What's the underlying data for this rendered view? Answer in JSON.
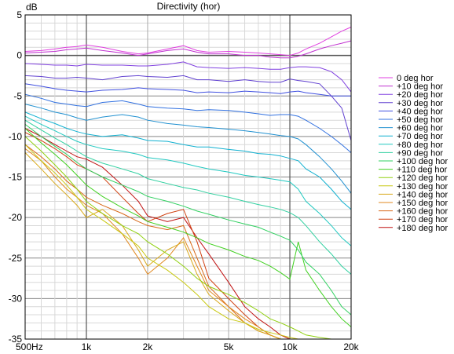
{
  "chart_data": {
    "type": "line",
    "title": "Directivity (hor)",
    "ylabel": "dB",
    "xlabel": "",
    "xscale": "log",
    "xlim": [
      500,
      20000
    ],
    "ylim": [
      -35,
      5
    ],
    "grid": true,
    "legend_placement": "right",
    "x_ticks": [
      {
        "value": 500,
        "label": "500Hz"
      },
      {
        "value": 1000,
        "label": "1k"
      },
      {
        "value": 2000,
        "label": "2k"
      },
      {
        "value": 5000,
        "label": "5k"
      },
      {
        "value": 10000,
        "label": "10k"
      },
      {
        "value": 20000,
        "label": "20k"
      }
    ],
    "y_ticks": [
      {
        "value": 5,
        "label": "5"
      },
      {
        "value": 0,
        "label": "0"
      },
      {
        "value": -5,
        "label": "-5"
      },
      {
        "value": -10,
        "label": "-10"
      },
      {
        "value": -15,
        "label": "-15"
      },
      {
        "value": -20,
        "label": "-20"
      },
      {
        "value": -25,
        "label": "-25"
      },
      {
        "value": -30,
        "label": "-30"
      },
      {
        "value": -35,
        "label": "-35"
      }
    ],
    "x": [
      500,
      600,
      700,
      800,
      900,
      1000,
      1200,
      1500,
      1800,
      2000,
      2500,
      3000,
      3500,
      4000,
      5000,
      6000,
      7000,
      8000,
      9000,
      10000,
      11000,
      12000,
      14000,
      16000,
      18000,
      20000
    ],
    "series": [
      {
        "name": "0 deg hor",
        "color": "#e040e0",
        "values": [
          0.5,
          0.6,
          0.8,
          1.0,
          1.1,
          1.3,
          1.0,
          0.5,
          0.2,
          0.3,
          0.8,
          1.2,
          0.6,
          0.4,
          0.5,
          0.4,
          0.3,
          0.2,
          0.1,
          0.0,
          0.3,
          0.8,
          1.5,
          2.3,
          3.0,
          3.5
        ]
      },
      {
        "name": "+10 deg hor",
        "color": "#c030d0",
        "values": [
          0.3,
          0.4,
          0.5,
          0.7,
          0.8,
          0.9,
          0.6,
          0.3,
          0.0,
          0.2,
          0.6,
          0.8,
          0.4,
          0.2,
          0.2,
          0.0,
          0.0,
          -0.2,
          -0.3,
          -0.3,
          -0.1,
          0.2,
          0.8,
          1.2,
          1.5,
          1.8
        ]
      },
      {
        "name": "+20 deg hor",
        "color": "#8040e0",
        "values": [
          -1.0,
          -1.1,
          -1.2,
          -1.2,
          -1.3,
          -1.1,
          -1.2,
          -1.2,
          -1.3,
          -1.3,
          -1.1,
          -0.8,
          -1.4,
          -1.5,
          -1.6,
          -1.5,
          -1.6,
          -1.7,
          -1.7,
          -1.5,
          -1.4,
          -1.4,
          -1.5,
          -2.0,
          -3.0,
          -4.5
        ]
      },
      {
        "name": "+30 deg hor",
        "color": "#6040d0",
        "values": [
          -2.5,
          -2.6,
          -2.8,
          -2.8,
          -2.7,
          -2.8,
          -3.0,
          -2.6,
          -2.5,
          -2.6,
          -2.7,
          -2.5,
          -3.0,
          -3.0,
          -3.2,
          -3.0,
          -3.2,
          -3.3,
          -3.3,
          -2.9,
          -3.1,
          -3.2,
          -3.5,
          -5.0,
          -6.5,
          -10.5
        ]
      },
      {
        "name": "+40 deg hor",
        "color": "#4050e0",
        "values": [
          -3.5,
          -3.8,
          -4.1,
          -4.3,
          -4.4,
          -4.5,
          -4.3,
          -4.2,
          -4.0,
          -4.1,
          -4.2,
          -4.3,
          -4.6,
          -4.5,
          -4.6,
          -4.4,
          -4.5,
          -4.6,
          -4.7,
          -4.5,
          -4.4,
          -4.6,
          -4.8,
          -5.0,
          -5.0,
          -5.0
        ]
      },
      {
        "name": "+50 deg hor",
        "color": "#3070e0",
        "values": [
          -4.8,
          -5.3,
          -5.8,
          -6.0,
          -6.2,
          -6.3,
          -5.8,
          -5.6,
          -6.0,
          -6.3,
          -6.5,
          -6.6,
          -6.8,
          -6.7,
          -6.8,
          -7.0,
          -7.2,
          -7.4,
          -7.3,
          -7.3,
          -7.5,
          -8.0,
          -9.0,
          -10.0,
          -11.0,
          -12.0
        ]
      },
      {
        "name": "+60 deg hor",
        "color": "#2090d0",
        "values": [
          -6.0,
          -6.5,
          -7.0,
          -7.3,
          -7.7,
          -8.0,
          -7.6,
          -7.3,
          -7.6,
          -8.0,
          -8.4,
          -8.6,
          -8.8,
          -8.9,
          -9.1,
          -9.3,
          -9.5,
          -9.7,
          -9.9,
          -10.0,
          -10.3,
          -11.0,
          -12.5,
          -14.0,
          -15.5,
          -17.0
        ]
      },
      {
        "name": "+70 deg hor",
        "color": "#10b0d0",
        "values": [
          -7.0,
          -7.8,
          -8.4,
          -9.0,
          -9.4,
          -9.7,
          -10.0,
          -9.8,
          -10.2,
          -10.5,
          -10.6,
          -11.0,
          -11.3,
          -11.3,
          -11.6,
          -11.8,
          -12.1,
          -12.2,
          -12.4,
          -12.7,
          -13.0,
          -14.0,
          -15.0,
          -16.5,
          -18.0,
          -19.0
        ]
      },
      {
        "name": "+80 deg hor",
        "color": "#20c8c0",
        "values": [
          -7.5,
          -8.5,
          -9.3,
          -10.0,
          -10.6,
          -11.0,
          -11.5,
          -11.8,
          -12.2,
          -12.6,
          -12.9,
          -13.3,
          -13.7,
          -14.0,
          -14.4,
          -14.8,
          -15.0,
          -15.2,
          -15.4,
          -15.6,
          -16.5,
          -18.0,
          -19.5,
          -21.0,
          -22.5,
          -23.5
        ]
      },
      {
        "name": "+90 deg hor",
        "color": "#30d0a0",
        "values": [
          -8.0,
          -9.2,
          -10.2,
          -11.0,
          -11.8,
          -12.5,
          -13.3,
          -14.0,
          -14.6,
          -15.2,
          -15.8,
          -16.3,
          -16.6,
          -17.0,
          -17.5,
          -18.0,
          -18.4,
          -18.7,
          -19.0,
          -19.4,
          -20.0,
          -21.0,
          -23.0,
          -24.5,
          -26.0,
          -27.0
        ]
      },
      {
        "name": "+100 deg hor",
        "color": "#30d060",
        "values": [
          -8.5,
          -10.0,
          -11.2,
          -12.2,
          -13.2,
          -14.0,
          -15.0,
          -16.0,
          -16.8,
          -17.4,
          -18.0,
          -18.6,
          -19.2,
          -19.6,
          -20.3,
          -20.8,
          -21.2,
          -21.8,
          -22.3,
          -22.8,
          -24.0,
          -25.5,
          -27.0,
          -29.0,
          -31.0,
          -32.0
        ]
      },
      {
        "name": "+110 deg hor",
        "color": "#40d020",
        "values": [
          -9.0,
          -10.8,
          -12.2,
          -13.5,
          -14.8,
          -16.0,
          -17.4,
          -18.8,
          -19.8,
          -20.5,
          -21.2,
          -21.8,
          -22.5,
          -23.2,
          -24.0,
          -24.8,
          -25.3,
          -26.0,
          -26.8,
          -27.6,
          -23.0,
          -26.5,
          -29.0,
          -31.0,
          -32.5,
          -33.5
        ]
      },
      {
        "name": "+120 deg hor",
        "color": "#90d010",
        "values": [
          -10.0,
          -11.8,
          -13.5,
          -15.0,
          -16.5,
          -18.0,
          -19.5,
          -21.0,
          -22.0,
          -23.0,
          -24.5,
          -26.0,
          -27.5,
          -28.5,
          -29.5,
          -30.5,
          -31.5,
          -32.5,
          -33.0,
          -33.5,
          -34.0,
          -34.5,
          -34.8,
          -35.0,
          -35.0,
          -35.0
        ]
      },
      {
        "name": "+130 deg hor",
        "color": "#c8c810",
        "values": [
          -11.0,
          -13.0,
          -14.5,
          -16.0,
          -17.5,
          -19.0,
          -20.3,
          -22.0,
          -23.5,
          -25.0,
          -26.5,
          -28.0,
          -29.5,
          -31.0,
          -32.5,
          -33.0,
          -33.8,
          -34.2,
          -34.5,
          -34.8,
          -35.0,
          -35.0,
          -35.0,
          -35.0,
          -35.0,
          -35.0
        ]
      },
      {
        "name": "+140 deg hor",
        "color": "#d8a818",
        "values": [
          -12.0,
          -14.0,
          -15.8,
          -17.2,
          -18.5,
          -20.0,
          -19.0,
          -21.0,
          -24.0,
          -26.0,
          -24.0,
          -23.0,
          -27.0,
          -29.5,
          -31.5,
          -33.0,
          -34.0,
          -34.5,
          -35.0,
          -35.0,
          -35.0,
          -35.0,
          -35.0,
          -35.0,
          -35.0,
          -35.0
        ]
      },
      {
        "name": "+150 deg hor",
        "color": "#e08820",
        "values": [
          -11.5,
          -13.0,
          -15.0,
          -16.5,
          -17.5,
          -18.5,
          -19.5,
          -22.0,
          -25.0,
          -27.0,
          -25.0,
          -22.5,
          -26.0,
          -29.0,
          -31.0,
          -32.5,
          -33.5,
          -34.5,
          -35.0,
          -35.0,
          -35.0,
          -35.0,
          -35.0,
          -35.0,
          -35.0,
          -35.0
        ]
      },
      {
        "name": "+160 deg hor",
        "color": "#d86818",
        "values": [
          -11.0,
          -12.5,
          -14.0,
          -15.5,
          -16.5,
          -17.5,
          -18.5,
          -19.5,
          -20.5,
          -21.0,
          -21.5,
          -21.0,
          -25.0,
          -28.5,
          -31.0,
          -33.0,
          -34.0,
          -34.5,
          -35.0,
          -35.0,
          -35.0,
          -35.0,
          -35.0,
          -35.0,
          -35.0,
          -35.0
        ]
      },
      {
        "name": "+170 deg hor",
        "color": "#d04010",
        "values": [
          -9.5,
          -10.5,
          -11.5,
          -12.5,
          -13.5,
          -14.0,
          -15.0,
          -17.5,
          -19.5,
          -20.5,
          -19.5,
          -19.0,
          -23.0,
          -27.5,
          -30.0,
          -32.0,
          -33.5,
          -34.5,
          -35.0,
          -35.0,
          -35.0,
          -35.0,
          -35.0,
          -35.0,
          -35.0,
          -35.0
        ]
      },
      {
        "name": "+180 deg hor",
        "color": "#c01010",
        "values": [
          -9.0,
          -10.0,
          -11.0,
          -11.8,
          -12.5,
          -12.8,
          -13.8,
          -16.0,
          -18.0,
          -19.8,
          -20.5,
          -20.0,
          -22.5,
          -24.5,
          -28.0,
          -31.0,
          -32.5,
          -33.5,
          -34.5,
          -35.0,
          -35.0,
          -35.0,
          -35.0,
          -35.0,
          -35.0,
          -35.0
        ]
      }
    ]
  }
}
